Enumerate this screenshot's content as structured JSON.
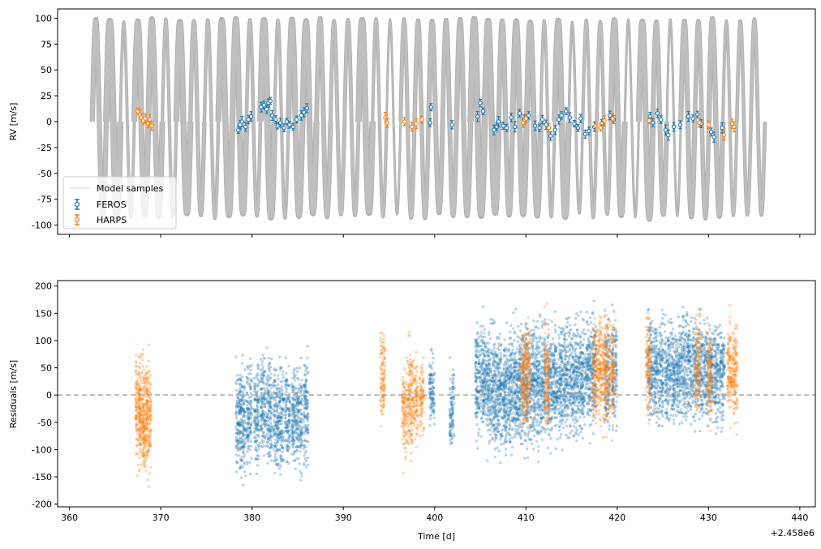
{
  "chart_data": [
    {
      "type": "line",
      "panel": "top",
      "ylabel": "RV [m/s]",
      "xlabel": "",
      "xlim": [
        358.7,
        441.7
      ],
      "ylim": [
        -109,
        109
      ],
      "yticks": [
        -100,
        -75,
        -50,
        -25,
        0,
        25,
        50,
        75,
        100
      ],
      "xticks": [
        360,
        370,
        380,
        390,
        400,
        410,
        420,
        430,
        440
      ],
      "xtick_labels_shown": false,
      "model": {
        "name": "Model samples",
        "color": "#a9a9a9",
        "t_start": 362.5,
        "t_end": 437.5,
        "period": 1.535,
        "amplitude_min": 88,
        "amplitude_max": 100,
        "cycle_spread_min": 3,
        "cycle_spread_max": 8
      },
      "series": [
        {
          "name": "FEROS",
          "color": "#1f77b4",
          "points": [
            [
              378.5,
              -8
            ],
            [
              378.7,
              -3
            ],
            [
              378.9,
              0
            ],
            [
              379.3,
              -5
            ],
            [
              379.6,
              2
            ],
            [
              379.9,
              5
            ],
            [
              381.0,
              14
            ],
            [
              381.3,
              16
            ],
            [
              381.6,
              12
            ],
            [
              381.8,
              18
            ],
            [
              382.0,
              20
            ],
            [
              382.2,
              6
            ],
            [
              382.6,
              2
            ],
            [
              382.8,
              -4
            ],
            [
              383.1,
              -1
            ],
            [
              383.5,
              -6
            ],
            [
              383.8,
              0
            ],
            [
              384.1,
              -3
            ],
            [
              384.5,
              -5
            ],
            [
              384.9,
              2
            ],
            [
              385.4,
              6
            ],
            [
              385.7,
              9
            ],
            [
              386.0,
              13
            ],
            [
              399.5,
              -1
            ],
            [
              399.6,
              14
            ],
            [
              401.9,
              -3
            ],
            [
              404.7,
              5
            ],
            [
              405.0,
              18
            ],
            [
              405.3,
              10
            ],
            [
              406.5,
              -8
            ],
            [
              406.8,
              -5
            ],
            [
              407.0,
              0
            ],
            [
              407.5,
              -4
            ],
            [
              407.9,
              -6
            ],
            [
              408.4,
              4
            ],
            [
              408.8,
              -5
            ],
            [
              409.3,
              8
            ],
            [
              409.8,
              2
            ],
            [
              410.3,
              6
            ],
            [
              411.0,
              -4
            ],
            [
              411.5,
              -6
            ],
            [
              411.8,
              2
            ],
            [
              412.2,
              -3
            ],
            [
              412.7,
              -14
            ],
            [
              413.2,
              -8
            ],
            [
              413.6,
              2
            ],
            [
              413.9,
              6
            ],
            [
              414.4,
              10
            ],
            [
              414.8,
              4
            ],
            [
              415.3,
              -2
            ],
            [
              415.7,
              -6
            ],
            [
              416.0,
              3
            ],
            [
              416.5,
              -12
            ],
            [
              416.9,
              -9
            ],
            [
              417.5,
              -5
            ],
            [
              418.3,
              -2
            ],
            [
              419.2,
              6
            ],
            [
              419.6,
              2
            ],
            [
              423.6,
              5
            ],
            [
              423.9,
              -1
            ],
            [
              424.4,
              8
            ],
            [
              424.8,
              2
            ],
            [
              425.3,
              -8
            ],
            [
              425.6,
              -13
            ],
            [
              426.2,
              -5
            ],
            [
              426.9,
              -3
            ],
            [
              427.8,
              5
            ],
            [
              428.3,
              3
            ],
            [
              428.8,
              7
            ],
            [
              429.2,
              -2
            ],
            [
              430.3,
              -10
            ],
            [
              430.6,
              -15
            ],
            [
              431.5,
              -6
            ]
          ]
        },
        {
          "name": "HARPS",
          "color": "#ff7f0e",
          "points": [
            [
              367.5,
              10
            ],
            [
              367.7,
              7
            ],
            [
              367.9,
              4
            ],
            [
              368.1,
              1
            ],
            [
              368.3,
              3
            ],
            [
              368.6,
              -2
            ],
            [
              368.8,
              2
            ],
            [
              369.0,
              -4
            ],
            [
              394.6,
              4
            ],
            [
              394.8,
              -1
            ],
            [
              396.7,
              0
            ],
            [
              397.5,
              -5
            ],
            [
              398.0,
              -2
            ],
            [
              398.6,
              2
            ],
            [
              409.7,
              -1
            ],
            [
              410.0,
              3
            ],
            [
              412.5,
              -6
            ],
            [
              417.6,
              -4
            ],
            [
              418.2,
              -6
            ],
            [
              418.6,
              1
            ],
            [
              419.5,
              3
            ],
            [
              423.5,
              1
            ],
            [
              429.0,
              -1
            ],
            [
              430.0,
              -3
            ],
            [
              431.7,
              -13
            ],
            [
              432.6,
              -2
            ],
            [
              432.8,
              -5
            ]
          ]
        }
      ],
      "legend": [
        "Model samples",
        "FEROS",
        "HARPS"
      ],
      "legend_position": "lower-left"
    },
    {
      "type": "scatter",
      "panel": "bottom",
      "xlabel": "Time [d]",
      "ylabel": "Residuals [m/s]",
      "offset_text": "+2.458e6",
      "xlim": [
        358.7,
        441.7
      ],
      "ylim": [
        -205,
        210
      ],
      "yticks": [
        -200,
        -150,
        -100,
        -50,
        0,
        50,
        100,
        150,
        200
      ],
      "xticks": [
        360,
        370,
        380,
        390,
        400,
        410,
        420,
        430,
        440
      ],
      "reference_line_y": 0,
      "reference_line_color": "#a9a9a9",
      "series": [
        {
          "name": "FEROS",
          "color": "#1f77b4",
          "columns": [
            [
              378.5,
              -175,
              80
            ],
            [
              379.0,
              -180,
              90
            ],
            [
              379.7,
              -165,
              95
            ],
            [
              380.5,
              -170,
              100
            ],
            [
              381.2,
              -165,
              105
            ],
            [
              381.9,
              -175,
              110
            ],
            [
              382.6,
              -180,
              90
            ],
            [
              383.2,
              -170,
              95
            ],
            [
              383.9,
              -165,
              90
            ],
            [
              384.6,
              -175,
              95
            ],
            [
              385.2,
              -170,
              95
            ],
            [
              385.9,
              -160,
              100
            ],
            [
              399.7,
              -100,
              110
            ],
            [
              401.9,
              -125,
              85
            ],
            [
              404.7,
              -110,
              170
            ],
            [
              405.3,
              -115,
              170
            ],
            [
              405.9,
              -135,
              165
            ],
            [
              406.5,
              -140,
              165
            ],
            [
              407.1,
              -145,
              160
            ],
            [
              407.7,
              -150,
              160
            ],
            [
              408.3,
              -145,
              165
            ],
            [
              408.9,
              -140,
              170
            ],
            [
              409.5,
              -140,
              175
            ],
            [
              410.1,
              -135,
              170
            ],
            [
              410.7,
              -140,
              175
            ],
            [
              411.3,
              -130,
              170
            ],
            [
              411.9,
              -125,
              175
            ],
            [
              412.6,
              -130,
              175
            ],
            [
              413.2,
              -120,
              170
            ],
            [
              413.8,
              -115,
              175
            ],
            [
              414.4,
              -110,
              180
            ],
            [
              415.0,
              -110,
              175
            ],
            [
              415.6,
              -105,
              180
            ],
            [
              416.2,
              -110,
              175
            ],
            [
              416.8,
              -100,
              180
            ],
            [
              417.4,
              -95,
              185
            ],
            [
              418.9,
              -95,
              180
            ],
            [
              419.7,
              -90,
              180
            ],
            [
              423.6,
              -80,
              185
            ],
            [
              424.2,
              -85,
              180
            ],
            [
              424.8,
              -90,
              180
            ],
            [
              425.5,
              -95,
              175
            ],
            [
              426.1,
              -85,
              175
            ],
            [
              426.7,
              -90,
              180
            ],
            [
              427.3,
              -80,
              175
            ],
            [
              427.9,
              -85,
              180
            ],
            [
              428.5,
              -80,
              175
            ],
            [
              429.1,
              -85,
              175
            ],
            [
              429.7,
              -75,
              170
            ],
            [
              430.3,
              -80,
              170
            ],
            [
              430.9,
              -95,
              170
            ],
            [
              431.5,
              -85,
              165
            ]
          ]
        },
        {
          "name": "HARPS",
          "color": "#ff7f0e",
          "columns": [
            [
              367.5,
              -170,
              120
            ],
            [
              367.9,
              -175,
              110
            ],
            [
              368.3,
              -180,
              105
            ],
            [
              368.7,
              -180,
              100
            ],
            [
              394.3,
              -90,
              150
            ],
            [
              396.7,
              -155,
              90
            ],
            [
              397.3,
              -145,
              140
            ],
            [
              397.9,
              -110,
              100
            ],
            [
              398.6,
              -105,
              85
            ],
            [
              409.7,
              -105,
              180
            ],
            [
              410.2,
              -100,
              175
            ],
            [
              412.3,
              -115,
              180
            ],
            [
              417.6,
              -95,
              180
            ],
            [
              418.2,
              -90,
              185
            ],
            [
              418.7,
              -95,
              180
            ],
            [
              419.4,
              -90,
              175
            ],
            [
              423.4,
              -75,
              180
            ],
            [
              428.8,
              -70,
              180
            ],
            [
              430.1,
              -85,
              170
            ],
            [
              432.3,
              -80,
              180
            ],
            [
              432.9,
              -85,
              175
            ]
          ]
        }
      ]
    }
  ]
}
